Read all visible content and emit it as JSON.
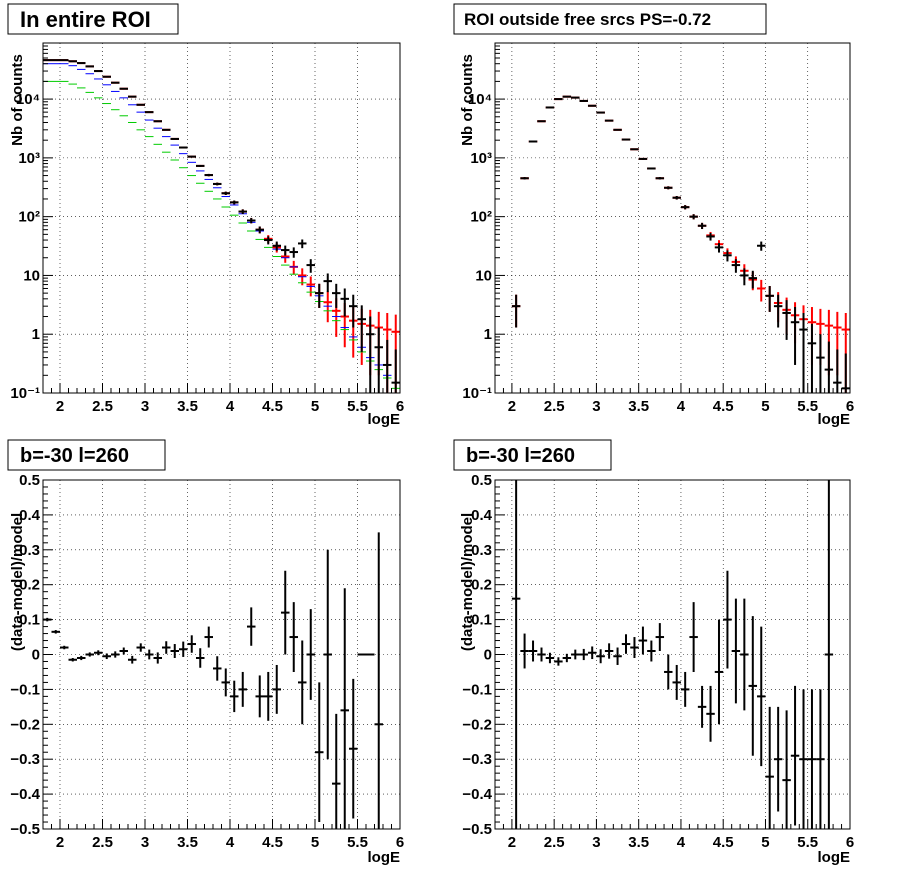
{
  "chart_data": [
    {
      "type": "scatter",
      "title": "In entire ROI",
      "xlabel": "logE",
      "ylabel": "Nb of counts",
      "yscale": "log",
      "xlim": [
        1.8,
        6.0
      ],
      "ylim": [
        0.1,
        90000
      ],
      "xticks": [
        "2",
        "2.5",
        "3",
        "3.5",
        "4",
        "4.5",
        "5",
        "5.5",
        "6"
      ],
      "yticks": [
        "10⁻¹",
        "1",
        "10",
        "10²",
        "10³",
        "10⁴"
      ],
      "grid": true,
      "x": [
        1.85,
        1.95,
        2.05,
        2.15,
        2.25,
        2.35,
        2.45,
        2.55,
        2.65,
        2.75,
        2.85,
        2.95,
        3.05,
        3.15,
        3.25,
        3.35,
        3.45,
        3.55,
        3.65,
        3.75,
        3.85,
        3.95,
        4.05,
        4.15,
        4.25,
        4.35,
        4.45,
        4.55,
        4.65,
        4.75,
        4.85,
        4.95,
        5.05,
        5.15,
        5.25,
        5.35,
        5.45,
        5.55,
        5.65,
        5.75,
        5.85,
        5.95
      ],
      "series": [
        {
          "color": "#ff0000",
          "y": [
            46000,
            46000,
            46000,
            44000,
            41000,
            36000,
            30000,
            24000,
            19000,
            15000,
            11000,
            8000,
            6000,
            4200,
            3000,
            2100,
            1500,
            1050,
            730,
            510,
            360,
            250,
            175,
            122,
            86,
            60,
            42,
            30,
            21,
            14,
            10,
            7,
            5,
            3.5,
            2.5,
            2,
            1.7,
            1.5,
            1.4,
            1.3,
            1.2,
            1.1
          ],
          "yerr": [
            210,
            210,
            210,
            210,
            200,
            190,
            170,
            150,
            140,
            120,
            105,
            90,
            77,
            65,
            55,
            46,
            39,
            32,
            27,
            23,
            19,
            16,
            13,
            11,
            9,
            8,
            6.5,
            5.5,
            4.6,
            3.7,
            3.2,
            2.6,
            2.2,
            1.9,
            1.6,
            1.4,
            1.3,
            1.2,
            1.2,
            1.1,
            1.1,
            1.05
          ]
        },
        {
          "color": "#0000ff",
          "y": [
            40000,
            40000,
            40000,
            37000,
            32000,
            27000,
            22000,
            17500,
            13500,
            10500,
            8000,
            6000,
            4400,
            3200,
            2300,
            1650,
            1180,
            840,
            600,
            430,
            310,
            220,
            158,
            112,
            80,
            57,
            40,
            28,
            20,
            14,
            9.5,
            6.5,
            4.5,
            3,
            2,
            1.3,
            0.9,
            0.6,
            0.4,
            0.3,
            0.2,
            0.15
          ]
        },
        {
          "color": "#00cc00",
          "y": [
            20000,
            20000,
            20000,
            18000,
            15500,
            13000,
            10500,
            8400,
            6600,
            5200,
            4000,
            3000,
            2300,
            1700,
            1250,
            920,
            680,
            500,
            370,
            270,
            200,
            146,
            106,
            78,
            57,
            41,
            30,
            21,
            15,
            10.5,
            7.5,
            5.2,
            3.6,
            2.5,
            1.7,
            1.2,
            0.8,
            0.5,
            0.35,
            0.25,
            0.18,
            0.12
          ]
        },
        {
          "color": "#000000",
          "y": [
            46000,
            46000,
            46000,
            44000,
            41000,
            36000,
            30000,
            24000,
            19000,
            15000,
            11000,
            8000,
            6000,
            4200,
            3000,
            2100,
            1500,
            1050,
            730,
            510,
            360,
            250,
            175,
            122,
            86,
            60,
            40,
            32,
            27,
            25,
            35,
            15,
            5,
            8,
            5,
            4,
            3,
            1.8,
            1,
            0.6,
            0.3,
            0.15
          ],
          "yerr": [
            210,
            210,
            210,
            210,
            200,
            190,
            170,
            150,
            140,
            120,
            105,
            90,
            77,
            65,
            55,
            46,
            39,
            32,
            27,
            23,
            19,
            16,
            13,
            11,
            9,
            8,
            6.3,
            5.7,
            5.2,
            5,
            5.9,
            3.9,
            2.2,
            2.8,
            2.2,
            2,
            1.7,
            1.3,
            1,
            0.7,
            0.5,
            0.4
          ]
        }
      ]
    },
    {
      "type": "scatter",
      "title": "ROI outside free srcs PS=-0.72",
      "xlabel": "logE",
      "ylabel": "Nb of counts",
      "yscale": "log",
      "xlim": [
        1.8,
        6.0
      ],
      "ylim": [
        0.1,
        90000
      ],
      "xticks": [
        "2",
        "2.5",
        "3",
        "3.5",
        "4",
        "4.5",
        "5",
        "5.5",
        "6"
      ],
      "yticks": [
        "10⁻¹",
        "1",
        "10",
        "10²",
        "10³",
        "10⁴"
      ],
      "grid": true,
      "x": [
        2.05,
        2.15,
        2.25,
        2.35,
        2.45,
        2.55,
        2.65,
        2.75,
        2.85,
        2.95,
        3.05,
        3.15,
        3.25,
        3.35,
        3.45,
        3.55,
        3.65,
        3.75,
        3.85,
        3.95,
        4.05,
        4.15,
        4.25,
        4.35,
        4.45,
        4.55,
        4.65,
        4.75,
        4.85,
        4.95,
        5.05,
        5.15,
        5.25,
        5.35,
        5.45,
        5.55,
        5.65,
        5.75,
        5.85,
        5.95
      ],
      "series": [
        {
          "color": "#ff0000",
          "y": [
            3,
            450,
            1900,
            4200,
            7200,
            10000,
            11000,
            10600,
            9300,
            7700,
            5900,
            4300,
            3000,
            2050,
            1400,
            960,
            660,
            450,
            310,
            210,
            145,
            100,
            70,
            48,
            34,
            24,
            17,
            12,
            8.5,
            6,
            4.5,
            3.4,
            2.6,
            2.1,
            1.8,
            1.6,
            1.5,
            1.4,
            1.3,
            1.2
          ],
          "yerr": [
            1.7,
            21,
            44,
            65,
            85,
            100,
            105,
            103,
            96,
            88,
            77,
            66,
            55,
            45,
            37,
            31,
            26,
            21,
            18,
            14.5,
            12,
            10,
            8.4,
            6.9,
            5.8,
            4.9,
            4.1,
            3.5,
            2.9,
            2.4,
            2.1,
            1.8,
            1.6,
            1.4,
            1.3,
            1.3,
            1.2,
            1.2,
            1.1,
            1.1
          ]
        },
        {
          "color": "#000000",
          "y": [
            3,
            450,
            1900,
            4200,
            7200,
            10000,
            11000,
            10600,
            9300,
            7700,
            5900,
            4300,
            3000,
            2050,
            1400,
            960,
            660,
            450,
            310,
            210,
            145,
            100,
            70,
            46,
            30,
            22,
            15,
            10,
            9,
            32,
            4.5,
            3,
            2.3,
            1.6,
            1.2,
            0.7,
            0.4,
            0.25,
            0.15,
            0.12
          ],
          "yerr": [
            1.7,
            21,
            44,
            65,
            85,
            100,
            105,
            103,
            96,
            88,
            77,
            66,
            55,
            45,
            37,
            31,
            26,
            21,
            18,
            14.5,
            12,
            10,
            8.4,
            6.8,
            5.5,
            4.7,
            3.9,
            3.2,
            3,
            5.7,
            2.1,
            1.7,
            1.5,
            1.3,
            1.1,
            0.8,
            0.6,
            0.5,
            0.4,
            0.35
          ]
        }
      ]
    },
    {
      "type": "scatter",
      "title": "b=-30 l=260",
      "xlabel": "logE",
      "ylabel": "(data-model)/model",
      "xlim": [
        1.8,
        6.0
      ],
      "ylim": [
        -0.5,
        0.5
      ],
      "xticks": [
        "2",
        "2.5",
        "3",
        "3.5",
        "4",
        "4.5",
        "5",
        "5.5",
        "6"
      ],
      "yticks": [
        "−0.5",
        "−0.4",
        "−0.3",
        "−0.2",
        "−0.1",
        "0",
        "0.1",
        "0.2",
        "0.3",
        "0.4",
        "0.5"
      ],
      "grid": true,
      "x": [
        1.85,
        1.95,
        2.05,
        2.15,
        2.25,
        2.35,
        2.45,
        2.55,
        2.65,
        2.75,
        2.85,
        2.95,
        3.05,
        3.15,
        3.25,
        3.35,
        3.45,
        3.55,
        3.65,
        3.75,
        3.85,
        3.95,
        4.05,
        4.15,
        4.25,
        4.35,
        4.45,
        4.55,
        4.65,
        4.75,
        4.85,
        4.95,
        5.05,
        5.15,
        5.25,
        5.35,
        5.45,
        5.55,
        5.65,
        5.75
      ],
      "y": [
        0.1,
        0.065,
        0.02,
        -0.015,
        -0.01,
        0.0,
        0.005,
        -0.005,
        0.0,
        0.01,
        -0.015,
        0.02,
        0.0,
        -0.01,
        0.02,
        0.01,
        0.015,
        0.03,
        -0.01,
        0.05,
        -0.04,
        -0.08,
        -0.12,
        -0.1,
        0.08,
        -0.12,
        -0.12,
        -0.1,
        0.12,
        0.05,
        -0.08,
        0.0,
        -0.28,
        0.0,
        -0.37,
        -0.16,
        -0.27,
        0.0,
        0.0,
        -0.2
      ],
      "yerr": [
        0.005,
        0.005,
        0.005,
        0.005,
        0.006,
        0.006,
        0.007,
        0.008,
        0.009,
        0.01,
        0.011,
        0.012,
        0.014,
        0.016,
        0.018,
        0.02,
        0.022,
        0.025,
        0.028,
        0.03,
        0.035,
        0.04,
        0.045,
        0.05,
        0.055,
        0.06,
        0.07,
        0.07,
        0.12,
        0.1,
        0.12,
        0.13,
        0.2,
        0.3,
        0.2,
        0.35,
        0.2,
        0,
        0,
        0.55
      ]
    },
    {
      "type": "scatter",
      "title": "b=-30 l=260",
      "xlabel": "logE",
      "ylabel": "(data-model)/model",
      "xlim": [
        1.8,
        6.0
      ],
      "ylim": [
        -0.5,
        0.5
      ],
      "xticks": [
        "2",
        "2.5",
        "3",
        "3.5",
        "4",
        "4.5",
        "5",
        "5.5",
        "6"
      ],
      "yticks": [
        "−0.5",
        "−0.4",
        "−0.3",
        "−0.2",
        "−0.1",
        "0",
        "0.1",
        "0.2",
        "0.3",
        "0.4",
        "0.5"
      ],
      "grid": true,
      "x": [
        2.05,
        2.15,
        2.25,
        2.35,
        2.45,
        2.55,
        2.65,
        2.75,
        2.85,
        2.95,
        3.05,
        3.15,
        3.25,
        3.35,
        3.45,
        3.55,
        3.65,
        3.75,
        3.85,
        3.95,
        4.05,
        4.15,
        4.25,
        4.35,
        4.45,
        4.55,
        4.65,
        4.75,
        4.85,
        4.95,
        5.05,
        5.15,
        5.25,
        5.35,
        5.45,
        5.55,
        5.65,
        5.75
      ],
      "y": [
        0.16,
        0.01,
        0.01,
        0.0,
        -0.01,
        -0.02,
        -0.01,
        0.0,
        0.0,
        0.005,
        -0.005,
        0.01,
        -0.005,
        0.03,
        0.02,
        0.04,
        0.01,
        0.05,
        -0.05,
        -0.08,
        -0.1,
        0.05,
        -0.15,
        -0.17,
        -0.05,
        0.1,
        0.01,
        0.0,
        -0.09,
        -0.12,
        -0.35,
        -0.3,
        -0.36,
        -0.29,
        -0.3,
        -0.3,
        -0.3,
        0.0
      ],
      "yerr": [
        0.7,
        0.05,
        0.03,
        0.02,
        0.015,
        0.012,
        0.012,
        0.014,
        0.016,
        0.018,
        0.02,
        0.022,
        0.025,
        0.028,
        0.03,
        0.04,
        0.03,
        0.04,
        0.05,
        0.05,
        0.05,
        0.1,
        0.06,
        0.08,
        0.15,
        0.14,
        0.15,
        0.16,
        0.2,
        0.2,
        0.2,
        0.15,
        0.2,
        0.2,
        0.2,
        0.2,
        0.2,
        0.5
      ]
    }
  ]
}
